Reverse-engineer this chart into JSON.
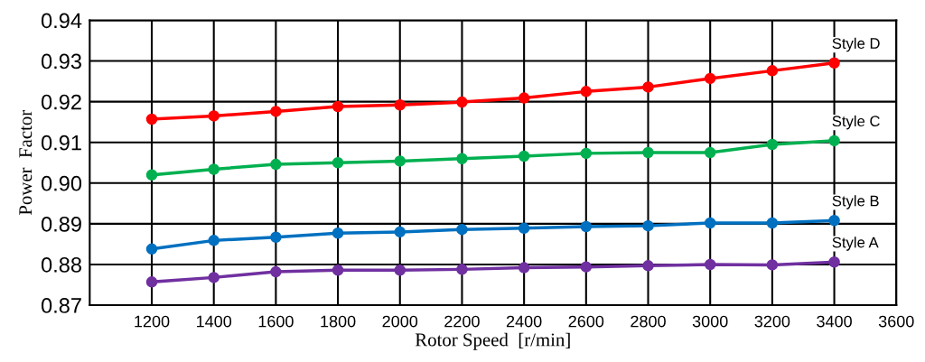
{
  "chart_data": {
    "type": "line",
    "xlabel": "Rotor Speed  [r/min]",
    "ylabel": "Power  Factor",
    "x": [
      1200,
      1400,
      1600,
      1800,
      2000,
      2200,
      2400,
      2600,
      2800,
      3000,
      3200,
      3400
    ],
    "series": [
      {
        "name": "Style D",
        "color": "#ff0000",
        "values": [
          0.9157,
          0.9165,
          0.9176,
          0.9188,
          0.9192,
          0.9199,
          0.9209,
          0.9225,
          0.9236,
          0.9257,
          0.9276,
          0.9295
        ]
      },
      {
        "name": "Style C",
        "color": "#00b050",
        "values": [
          0.902,
          0.9034,
          0.9046,
          0.905,
          0.9054,
          0.906,
          0.9066,
          0.9073,
          0.9075,
          0.9075,
          0.9095,
          0.9104
        ]
      },
      {
        "name": "Style B",
        "color": "#0070c0",
        "values": [
          0.8838,
          0.8859,
          0.8867,
          0.8877,
          0.888,
          0.8886,
          0.8889,
          0.8893,
          0.8895,
          0.8902,
          0.8902,
          0.8908
        ]
      },
      {
        "name": "Style A",
        "color": "#7030a0",
        "values": [
          0.8757,
          0.8768,
          0.8782,
          0.8786,
          0.8786,
          0.8788,
          0.8792,
          0.8794,
          0.8797,
          0.88,
          0.8799,
          0.8806
        ]
      }
    ],
    "xlim": [
      1000,
      3600
    ],
    "xticks": [
      1200,
      1400,
      1600,
      1800,
      2000,
      2200,
      2400,
      2600,
      2800,
      3000,
      3200,
      3400,
      3600
    ],
    "ylim": [
      0.87,
      0.94
    ],
    "yticks": [
      {
        "value": 0.87,
        "label": "0.87"
      },
      {
        "value": 0.88,
        "label": "0.88"
      },
      {
        "value": 0.89,
        "label": "0.89"
      },
      {
        "value": 0.9,
        "label": "0.90"
      },
      {
        "value": 0.91,
        "label": "0.91"
      },
      {
        "value": 0.92,
        "label": "0.92"
      },
      {
        "value": 0.93,
        "label": "0.93"
      },
      {
        "value": 0.94,
        "label": "0.94"
      }
    ],
    "grid": true,
    "legend": false,
    "marker": "circle",
    "line_style": "solid"
  }
}
